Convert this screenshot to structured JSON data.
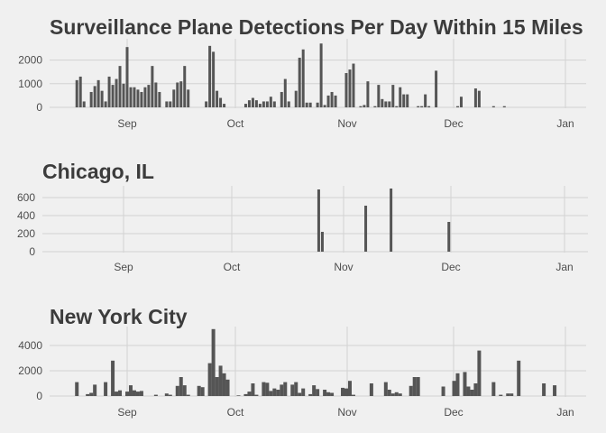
{
  "chart_data": [
    {
      "type": "bar",
      "title": "Surveillance Plane Detections Per Day Within 15 Miles",
      "xlabel": "",
      "ylabel": "",
      "x_ticks": [
        "Sep",
        "Oct",
        "Nov",
        "Dec",
        "Jan"
      ],
      "y_ticks": [
        "0",
        "1000",
        "2000"
      ],
      "ylim": [
        0,
        2900
      ],
      "grid": true,
      "bar_color": "#555555",
      "values": [
        {
          "x": "2015-08-18",
          "y": 1150
        },
        {
          "x": "2015-08-19",
          "y": 1300
        },
        {
          "x": "2015-08-20",
          "y": 250
        },
        {
          "x": "2015-08-22",
          "y": 650
        },
        {
          "x": "2015-08-23",
          "y": 900
        },
        {
          "x": "2015-08-24",
          "y": 1150
        },
        {
          "x": "2015-08-25",
          "y": 700
        },
        {
          "x": "2015-08-26",
          "y": 250
        },
        {
          "x": "2015-08-27",
          "y": 1300
        },
        {
          "x": "2015-08-28",
          "y": 950
        },
        {
          "x": "2015-08-29",
          "y": 1200
        },
        {
          "x": "2015-08-30",
          "y": 1750
        },
        {
          "x": "2015-08-31",
          "y": 1000
        },
        {
          "x": "2015-09-01",
          "y": 2550
        },
        {
          "x": "2015-09-02",
          "y": 850
        },
        {
          "x": "2015-09-03",
          "y": 850
        },
        {
          "x": "2015-09-04",
          "y": 750
        },
        {
          "x": "2015-09-05",
          "y": 650
        },
        {
          "x": "2015-09-06",
          "y": 850
        },
        {
          "x": "2015-09-07",
          "y": 950
        },
        {
          "x": "2015-09-08",
          "y": 1750
        },
        {
          "x": "2015-09-09",
          "y": 1050
        },
        {
          "x": "2015-09-10",
          "y": 650
        },
        {
          "x": "2015-09-12",
          "y": 250
        },
        {
          "x": "2015-09-13",
          "y": 250
        },
        {
          "x": "2015-09-14",
          "y": 750
        },
        {
          "x": "2015-09-15",
          "y": 1050
        },
        {
          "x": "2015-09-16",
          "y": 1100
        },
        {
          "x": "2015-09-17",
          "y": 1750
        },
        {
          "x": "2015-09-18",
          "y": 750
        },
        {
          "x": "2015-09-23",
          "y": 250
        },
        {
          "x": "2015-09-24",
          "y": 2600
        },
        {
          "x": "2015-09-25",
          "y": 2350
        },
        {
          "x": "2015-09-26",
          "y": 700
        },
        {
          "x": "2015-09-27",
          "y": 400
        },
        {
          "x": "2015-09-28",
          "y": 150
        },
        {
          "x": "2015-10-04",
          "y": 150
        },
        {
          "x": "2015-10-05",
          "y": 300
        },
        {
          "x": "2015-10-06",
          "y": 400
        },
        {
          "x": "2015-10-07",
          "y": 300
        },
        {
          "x": "2015-10-08",
          "y": 150
        },
        {
          "x": "2015-10-09",
          "y": 250
        },
        {
          "x": "2015-10-10",
          "y": 250
        },
        {
          "x": "2015-10-11",
          "y": 450
        },
        {
          "x": "2015-10-12",
          "y": 250
        },
        {
          "x": "2015-10-14",
          "y": 650
        },
        {
          "x": "2015-10-15",
          "y": 1200
        },
        {
          "x": "2015-10-16",
          "y": 250
        },
        {
          "x": "2015-10-18",
          "y": 700
        },
        {
          "x": "2015-10-19",
          "y": 2100
        },
        {
          "x": "2015-10-20",
          "y": 2450
        },
        {
          "x": "2015-10-21",
          "y": 200
        },
        {
          "x": "2015-10-22",
          "y": 200
        },
        {
          "x": "2015-10-24",
          "y": 200
        },
        {
          "x": "2015-10-25",
          "y": 2700
        },
        {
          "x": "2015-10-26",
          "y": 100
        },
        {
          "x": "2015-10-27",
          "y": 500
        },
        {
          "x": "2015-10-28",
          "y": 650
        },
        {
          "x": "2015-10-29",
          "y": 500
        },
        {
          "x": "2015-11-01",
          "y": 1450
        },
        {
          "x": "2015-11-02",
          "y": 1600
        },
        {
          "x": "2015-11-03",
          "y": 1850
        },
        {
          "x": "2015-11-05",
          "y": 50
        },
        {
          "x": "2015-11-06",
          "y": 100
        },
        {
          "x": "2015-11-07",
          "y": 1100
        },
        {
          "x": "2015-11-09",
          "y": 50
        },
        {
          "x": "2015-11-10",
          "y": 950
        },
        {
          "x": "2015-11-11",
          "y": 350
        },
        {
          "x": "2015-11-12",
          "y": 250
        },
        {
          "x": "2015-11-13",
          "y": 250
        },
        {
          "x": "2015-11-14",
          "y": 950
        },
        {
          "x": "2015-11-15",
          "y": 50
        },
        {
          "x": "2015-11-16",
          "y": 850
        },
        {
          "x": "2015-11-17",
          "y": 550
        },
        {
          "x": "2015-11-18",
          "y": 550
        },
        {
          "x": "2015-11-21",
          "y": 50
        },
        {
          "x": "2015-11-22",
          "y": 50
        },
        {
          "x": "2015-11-23",
          "y": 550
        },
        {
          "x": "2015-11-24",
          "y": 50
        },
        {
          "x": "2015-11-26",
          "y": 1550
        },
        {
          "x": "2015-12-02",
          "y": 50
        },
        {
          "x": "2015-12-03",
          "y": 450
        },
        {
          "x": "2015-12-07",
          "y": 800
        },
        {
          "x": "2015-12-08",
          "y": 700
        },
        {
          "x": "2015-12-12",
          "y": 50
        },
        {
          "x": "2015-12-15",
          "y": 50
        }
      ]
    },
    {
      "type": "bar",
      "title": "Chicago, IL",
      "xlabel": "",
      "ylabel": "",
      "x_ticks": [
        "Sep",
        "Oct",
        "Nov",
        "Dec",
        "Jan"
      ],
      "y_ticks": [
        "0",
        "200",
        "400",
        "600"
      ],
      "ylim": [
        0,
        730
      ],
      "grid": true,
      "bar_color": "#555555",
      "values": [
        {
          "x": "2015-10-25",
          "y": 690
        },
        {
          "x": "2015-10-26",
          "y": 220
        },
        {
          "x": "2015-11-07",
          "y": 510
        },
        {
          "x": "2015-11-14",
          "y": 700
        },
        {
          "x": "2015-11-30",
          "y": 330
        }
      ]
    },
    {
      "type": "bar",
      "title": "New York City",
      "xlabel": "",
      "ylabel": "",
      "x_ticks": [
        "Sep",
        "Oct",
        "Nov",
        "Dec",
        "Jan"
      ],
      "y_ticks": [
        "0",
        "2000",
        "4000"
      ],
      "ylim": [
        0,
        5500
      ],
      "grid": true,
      "bar_color": "#555555",
      "values": [
        {
          "x": "2015-08-18",
          "y": 1100
        },
        {
          "x": "2015-08-21",
          "y": 150
        },
        {
          "x": "2015-08-22",
          "y": 250
        },
        {
          "x": "2015-08-23",
          "y": 900
        },
        {
          "x": "2015-08-26",
          "y": 1100
        },
        {
          "x": "2015-08-28",
          "y": 2800
        },
        {
          "x": "2015-08-29",
          "y": 350
        },
        {
          "x": "2015-08-30",
          "y": 450
        },
        {
          "x": "2015-09-01",
          "y": 350
        },
        {
          "x": "2015-09-02",
          "y": 850
        },
        {
          "x": "2015-09-03",
          "y": 450
        },
        {
          "x": "2015-09-04",
          "y": 350
        },
        {
          "x": "2015-09-05",
          "y": 400
        },
        {
          "x": "2015-09-09",
          "y": 100
        },
        {
          "x": "2015-09-12",
          "y": 200
        },
        {
          "x": "2015-09-13",
          "y": 100
        },
        {
          "x": "2015-09-15",
          "y": 800
        },
        {
          "x": "2015-09-16",
          "y": 1500
        },
        {
          "x": "2015-09-17",
          "y": 850
        },
        {
          "x": "2015-09-18",
          "y": 100
        },
        {
          "x": "2015-09-21",
          "y": 800
        },
        {
          "x": "2015-09-22",
          "y": 700
        },
        {
          "x": "2015-09-24",
          "y": 2600
        },
        {
          "x": "2015-09-25",
          "y": 5300
        },
        {
          "x": "2015-09-26",
          "y": 1500
        },
        {
          "x": "2015-09-27",
          "y": 2400
        },
        {
          "x": "2015-09-28",
          "y": 1800
        },
        {
          "x": "2015-09-29",
          "y": 1300
        },
        {
          "x": "2015-10-02",
          "y": 50
        },
        {
          "x": "2015-10-04",
          "y": 150
        },
        {
          "x": "2015-10-05",
          "y": 350
        },
        {
          "x": "2015-10-06",
          "y": 1000
        },
        {
          "x": "2015-10-07",
          "y": 100
        },
        {
          "x": "2015-10-09",
          "y": 1100
        },
        {
          "x": "2015-10-10",
          "y": 1050
        },
        {
          "x": "2015-10-11",
          "y": 400
        },
        {
          "x": "2015-10-12",
          "y": 600
        },
        {
          "x": "2015-10-13",
          "y": 500
        },
        {
          "x": "2015-10-14",
          "y": 900
        },
        {
          "x": "2015-10-15",
          "y": 1100
        },
        {
          "x": "2015-10-17",
          "y": 900
        },
        {
          "x": "2015-10-18",
          "y": 1100
        },
        {
          "x": "2015-10-19",
          "y": 250
        },
        {
          "x": "2015-10-20",
          "y": 600
        },
        {
          "x": "2015-10-22",
          "y": 150
        },
        {
          "x": "2015-10-23",
          "y": 850
        },
        {
          "x": "2015-10-24",
          "y": 550
        },
        {
          "x": "2015-10-26",
          "y": 500
        },
        {
          "x": "2015-10-27",
          "y": 300
        },
        {
          "x": "2015-10-28",
          "y": 250
        },
        {
          "x": "2015-10-31",
          "y": 650
        },
        {
          "x": "2015-11-01",
          "y": 600
        },
        {
          "x": "2015-11-02",
          "y": 1200
        },
        {
          "x": "2015-11-03",
          "y": 100
        },
        {
          "x": "2015-11-08",
          "y": 1000
        },
        {
          "x": "2015-11-12",
          "y": 1100
        },
        {
          "x": "2015-11-13",
          "y": 500
        },
        {
          "x": "2015-11-14",
          "y": 200
        },
        {
          "x": "2015-11-15",
          "y": 300
        },
        {
          "x": "2015-11-16",
          "y": 200
        },
        {
          "x": "2015-11-19",
          "y": 800
        },
        {
          "x": "2015-11-20",
          "y": 1500
        },
        {
          "x": "2015-11-21",
          "y": 1500
        },
        {
          "x": "2015-11-28",
          "y": 750
        },
        {
          "x": "2015-12-01",
          "y": 1200
        },
        {
          "x": "2015-12-02",
          "y": 1800
        },
        {
          "x": "2015-12-04",
          "y": 1900
        },
        {
          "x": "2015-12-05",
          "y": 750
        },
        {
          "x": "2015-12-06",
          "y": 500
        },
        {
          "x": "2015-12-07",
          "y": 1000
        },
        {
          "x": "2015-12-08",
          "y": 3600
        },
        {
          "x": "2015-12-12",
          "y": 1100
        },
        {
          "x": "2015-12-14",
          "y": 100
        },
        {
          "x": "2015-12-16",
          "y": 200
        },
        {
          "x": "2015-12-17",
          "y": 200
        },
        {
          "x": "2015-12-19",
          "y": 2800
        },
        {
          "x": "2015-12-26",
          "y": 1000
        },
        {
          "x": "2015-12-29",
          "y": 850
        }
      ]
    }
  ]
}
